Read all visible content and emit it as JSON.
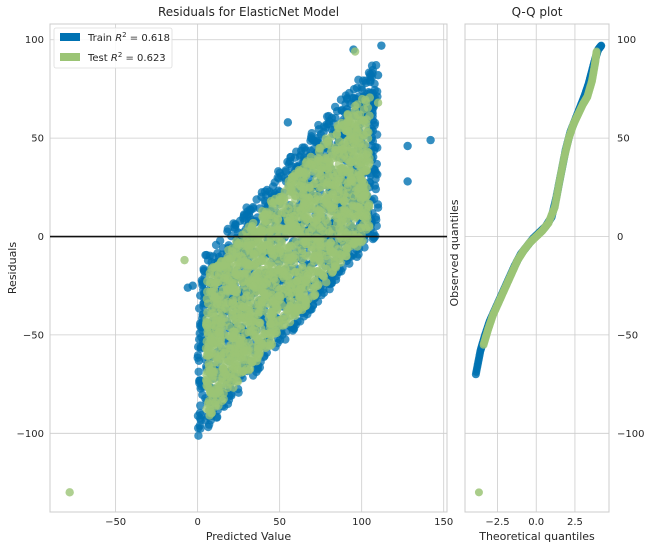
{
  "chart_data": [
    {
      "type": "scatter",
      "title": "Residuals for ElasticNet Model",
      "xlabel": "Predicted Value",
      "ylabel": "Residuals",
      "xlim": [
        -90,
        152
      ],
      "ylim": [
        -140,
        108
      ],
      "xticks": [
        -50,
        0,
        50,
        100,
        150
      ],
      "yticks": [
        -100,
        -50,
        0,
        50,
        100
      ],
      "grid": true,
      "hline": 0,
      "legend": {
        "position": "top-left"
      },
      "series": [
        {
          "name": "Train R² = 0.618",
          "name_main": "Train ",
          "r2_label": "= 0.618",
          "color": "#0072b2",
          "band": {
            "x_min": 0,
            "x_max": 110,
            "slope": 1.0,
            "intercept": -55,
            "half_width": 45
          },
          "outliers": [
            [
              14,
              -70
            ],
            [
              22,
              -59
            ],
            [
              26,
              -58
            ],
            [
              33,
              -64
            ],
            [
              112,
              97
            ],
            [
              110,
              82
            ],
            [
              142,
              49
            ],
            [
              128,
              46
            ],
            [
              128,
              28
            ],
            [
              95,
              95
            ],
            [
              55,
              58
            ],
            [
              -3,
              -25
            ],
            [
              -6,
              -26
            ],
            [
              100,
              62
            ]
          ]
        },
        {
          "name": "Test R² = 0.623",
          "name_main": "Test ",
          "r2_label": "= 0.623",
          "color": "#9bc475",
          "band": {
            "x_min": 5,
            "x_max": 105,
            "slope": 1.0,
            "intercept": -55,
            "half_width": 40
          },
          "outliers": [
            [
              -78,
              -130
            ],
            [
              -8,
              -12
            ],
            [
              110,
              68
            ],
            [
              96,
              94
            ],
            [
              20,
              -57
            ],
            [
              28,
              -58
            ]
          ]
        }
      ]
    },
    {
      "type": "scatter",
      "title": "Q-Q plot",
      "xlabel": "Theoretical quantiles",
      "ylabel": "Observed quantiles",
      "xlim": [
        -4.6,
        4.7
      ],
      "ylim": [
        -140,
        108
      ],
      "xticks": [
        -2.5,
        0.0,
        2.5
      ],
      "xtick_labels": [
        "−2.5",
        "0.0",
        "2.5"
      ],
      "yticks": [
        -100,
        -50,
        0,
        50,
        100
      ],
      "grid": true,
      "hline": 0,
      "series": [
        {
          "name": "Train",
          "color": "#0072b2",
          "points": [
            [
              -3.9,
              -70
            ],
            [
              -3.6,
              -58
            ],
            [
              -3.3,
              -50
            ],
            [
              -3.0,
              -43
            ],
            [
              -2.6,
              -36
            ],
            [
              -2.2,
              -29
            ],
            [
              -1.8,
              -22
            ],
            [
              -1.4,
              -15
            ],
            [
              -1.0,
              -9
            ],
            [
              -0.6,
              -5
            ],
            [
              -0.2,
              -1
            ],
            [
              0.2,
              2
            ],
            [
              0.6,
              5
            ],
            [
              1.0,
              10
            ],
            [
              1.3,
              20
            ],
            [
              1.6,
              32
            ],
            [
              1.9,
              44
            ],
            [
              2.2,
              53
            ],
            [
              2.5,
              59
            ],
            [
              2.8,
              65
            ],
            [
              3.1,
              71
            ],
            [
              3.4,
              78
            ],
            [
              3.6,
              84
            ],
            [
              3.8,
              90
            ],
            [
              4.0,
              95
            ],
            [
              4.2,
              97
            ]
          ]
        },
        {
          "name": "Test",
          "color": "#9bc475",
          "points": [
            [
              -3.7,
              -130
            ],
            [
              -3.4,
              -55
            ],
            [
              -3.1,
              -47
            ],
            [
              -2.8,
              -40
            ],
            [
              -2.4,
              -33
            ],
            [
              -2.0,
              -26
            ],
            [
              -1.6,
              -19
            ],
            [
              -1.2,
              -12
            ],
            [
              -0.8,
              -7
            ],
            [
              -0.4,
              -3
            ],
            [
              0.0,
              0
            ],
            [
              0.4,
              3
            ],
            [
              0.8,
              7
            ],
            [
              1.2,
              15
            ],
            [
              1.5,
              28
            ],
            [
              1.8,
              40
            ],
            [
              2.1,
              50
            ],
            [
              2.4,
              57
            ],
            [
              2.7,
              62
            ],
            [
              3.0,
              67
            ],
            [
              3.3,
              71
            ],
            [
              3.6,
              79
            ],
            [
              3.8,
              88
            ],
            [
              3.9,
              94
            ]
          ]
        }
      ]
    }
  ]
}
